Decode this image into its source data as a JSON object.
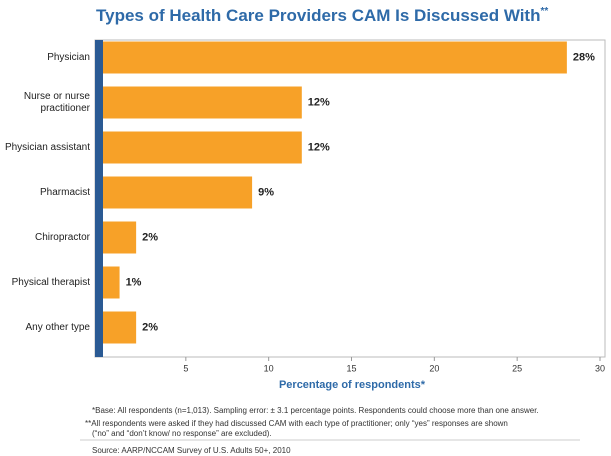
{
  "chart_data": {
    "type": "barh",
    "title": "Types of Health Care Providers CAM Is Discussed With",
    "title_mark": "**",
    "categories": [
      "Physician",
      "Nurse or nurse practitioner",
      "Physician assistant",
      "Pharmacist",
      "Chiropractor",
      "Physical therapist",
      "Any other type"
    ],
    "values": [
      28,
      12,
      12,
      9,
      2,
      1,
      2
    ],
    "value_labels": [
      "28%",
      "12%",
      "12%",
      "9%",
      "2%",
      "1%",
      "2%"
    ],
    "color": "#f7a128",
    "xlim": [
      0,
      30
    ],
    "xticks": [
      5,
      10,
      15,
      20,
      25,
      30
    ],
    "xlabel": "Percentage of respondents*",
    "notes": [
      "*Base: All respondents (n=1,013). Sampling error: ± 3.1 percentage points. Respondents could choose more than one answer.",
      "**All respondents were asked if they had discussed CAM with each type of practitioner; only “yes” responses are shown (“no” and “don’t know/ no response” are excluded)."
    ],
    "source": "Source: AARP/NCCAM Survey of U.S. Adults 50+, 2010"
  }
}
